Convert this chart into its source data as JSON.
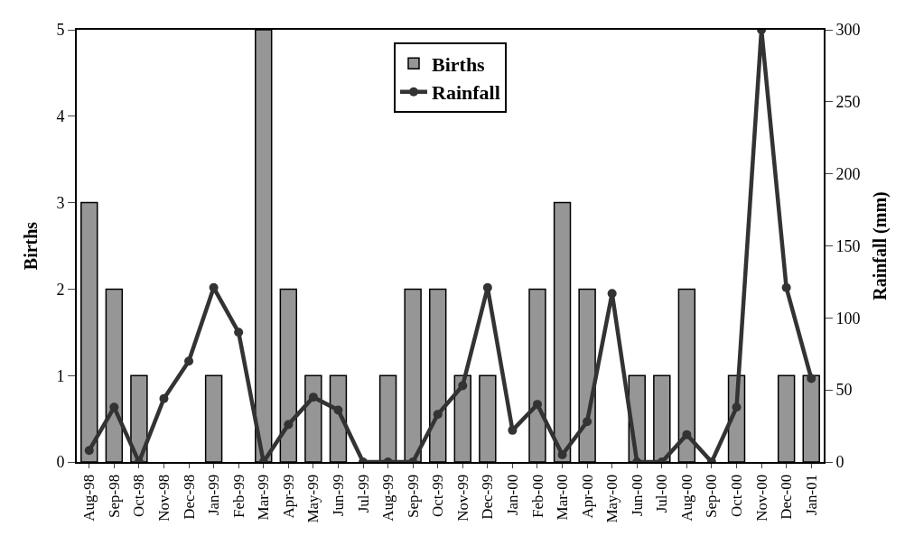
{
  "chart_data": {
    "type": "bar",
    "categories": [
      "Aug-98",
      "Sep-98",
      "Oct-98",
      "Nov-98",
      "Dec-98",
      "Jan-99",
      "Feb-99",
      "Mar-99",
      "Apr-99",
      "May-99",
      "Jun-99",
      "Jul-99",
      "Aug-99",
      "Sep-99",
      "Oct-99",
      "Nov-99",
      "Dec-99",
      "Jan-00",
      "Feb-00",
      "Mar-00",
      "Apr-00",
      "May-00",
      "Jun-00",
      "Jul-00",
      "Aug-00",
      "Sep-00",
      "Oct-00",
      "Nov-00",
      "Dec-00",
      "Jan-01"
    ],
    "series": [
      {
        "name": "Births",
        "color": "#969696",
        "values": [
          3,
          2,
          1,
          0,
          0,
          1,
          0,
          5,
          2,
          1,
          1,
          0,
          1,
          2,
          2,
          1,
          1,
          0,
          2,
          3,
          2,
          0,
          1,
          1,
          2,
          0,
          1,
          0,
          1,
          1
        ]
      },
      {
        "name": "Rainfall",
        "type": "line",
        "axis": "y2",
        "color": "#333333",
        "marker": "circle",
        "values": [
          8,
          38,
          0,
          44,
          70,
          121,
          90,
          0,
          26,
          45,
          36,
          0,
          0,
          0,
          33,
          53,
          121,
          22,
          40,
          5,
          28,
          117,
          0,
          0,
          19,
          0,
          38,
          300,
          121,
          58
        ]
      }
    ],
    "ylabel": "Births",
    "y2label": "Rainfall (mm)",
    "ylim": [
      0,
      5
    ],
    "yticks": [
      0,
      1,
      2,
      3,
      4,
      5
    ],
    "y2lim": [
      0,
      300
    ],
    "y2ticks": [
      0,
      50,
      100,
      150,
      200,
      250,
      300
    ],
    "legend": "top"
  }
}
